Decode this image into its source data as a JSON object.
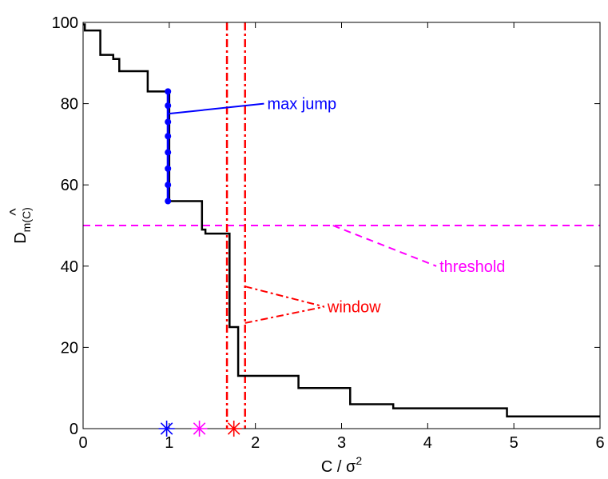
{
  "chart_data": {
    "type": "line",
    "xlabel": "C / σ",
    "xlabel_sup": "2",
    "ylabel": "D",
    "ylabel_sub": "m(C)",
    "ylabel_hat": "^",
    "xlim": [
      0,
      6
    ],
    "ylim": [
      0,
      100
    ],
    "xticks": [
      "0",
      "1",
      "2",
      "3",
      "4",
      "5",
      "6"
    ],
    "yticks": [
      "0",
      "20",
      "40",
      "60",
      "80",
      "100"
    ],
    "grid": false,
    "colors": {
      "curve": "#000000",
      "jump": "#0000ff",
      "threshold": "#ff00ff",
      "window": "#ff0000"
    },
    "series": [
      {
        "style": "step",
        "color": "#000000",
        "x": [
          0.0,
          0.02,
          0.02,
          0.2,
          0.2,
          0.35,
          0.35,
          0.42,
          0.42,
          0.75,
          0.75,
          0.97,
          0.97,
          1.0,
          1.0,
          1.38,
          1.38,
          1.42,
          1.42,
          1.7,
          1.7,
          1.72,
          1.72,
          1.8,
          1.8,
          2.5,
          2.5,
          3.1,
          3.1,
          3.6,
          3.6,
          4.92,
          4.92,
          6.0
        ],
        "y": [
          99.5,
          99.5,
          98,
          98,
          92,
          92,
          91,
          91,
          88,
          88,
          83,
          83,
          83,
          83,
          56,
          56,
          49,
          49,
          48,
          48,
          25,
          25,
          25,
          25,
          13,
          13,
          10,
          10,
          6,
          6,
          5,
          5,
          3,
          3
        ]
      },
      {
        "style": "line-markers",
        "color": "#0000ff",
        "x": [
          0.985,
          0.985,
          0.985,
          0.985,
          0.985,
          0.985,
          0.985,
          0.985
        ],
        "y": [
          56,
          60,
          64,
          68,
          72,
          75.5,
          79.5,
          83
        ]
      }
    ],
    "threshold": {
      "y": 50
    },
    "window": {
      "x": [
        1.67,
        1.88
      ]
    },
    "star_markers": [
      {
        "x": 0.97,
        "y": 0,
        "color": "#0000ff"
      },
      {
        "x": 1.35,
        "y": 0,
        "color": "#ff00ff"
      },
      {
        "x": 1.75,
        "y": 0,
        "color": "#ff0000"
      }
    ],
    "annotations": [
      {
        "text": "max jump",
        "color": "#0000ff",
        "label_at": [
          2.1,
          80
        ],
        "line_from": [
          0.985,
          77.5
        ],
        "line_to": [
          2.1,
          80
        ],
        "line_style": "solid"
      },
      {
        "text": "threshold",
        "color": "#ff00ff",
        "label_at": [
          4.1,
          40
        ],
        "line_from": [
          2.9,
          50
        ],
        "line_to": [
          4.1,
          40
        ],
        "line_style": "dashed"
      },
      {
        "text": "window",
        "color": "#ff0000",
        "label_at": [
          2.8,
          30
        ],
        "line_from": [
          1.88,
          35
        ],
        "line_to": [
          2.8,
          30
        ],
        "line2_from": [
          1.88,
          26
        ],
        "line_style": "dashdot"
      }
    ]
  }
}
